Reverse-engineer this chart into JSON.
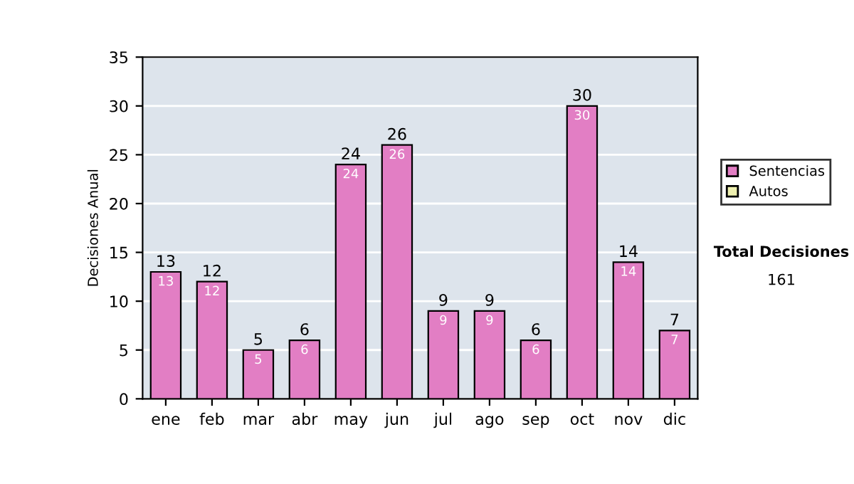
{
  "chart_data": {
    "type": "bar",
    "stacked": true,
    "ylabel": "Decisiones Anual",
    "categories": [
      "ene",
      "feb",
      "mar",
      "abr",
      "may",
      "jun",
      "jul",
      "ago",
      "sep",
      "oct",
      "nov",
      "dic"
    ],
    "series": [
      {
        "name": "Sentencias",
        "color": "#e27ec4",
        "values": [
          13,
          12,
          5,
          6,
          24,
          26,
          9,
          9,
          6,
          30,
          14,
          7
        ],
        "value_labels": [
          "13",
          "12",
          "5",
          "6",
          "24",
          "26",
          "9",
          "9",
          "6",
          "30",
          "14",
          "7"
        ]
      },
      {
        "name": "Autos",
        "color": "#eef0b0",
        "values": [
          0,
          0,
          0,
          0,
          0,
          0,
          0,
          0,
          0,
          0,
          0,
          0
        ]
      }
    ],
    "totals": [
      "13",
      "12",
      "5",
      "6",
      "24",
      "26",
      "9",
      "9",
      "6",
      "30",
      "14",
      "7"
    ],
    "ylim": [
      0,
      35
    ],
    "yticks": [
      0,
      5,
      10,
      15,
      20,
      25,
      30,
      35
    ],
    "grid": "y",
    "legend": "right",
    "annotations": [
      "Total Decisiones",
      "161"
    ]
  }
}
